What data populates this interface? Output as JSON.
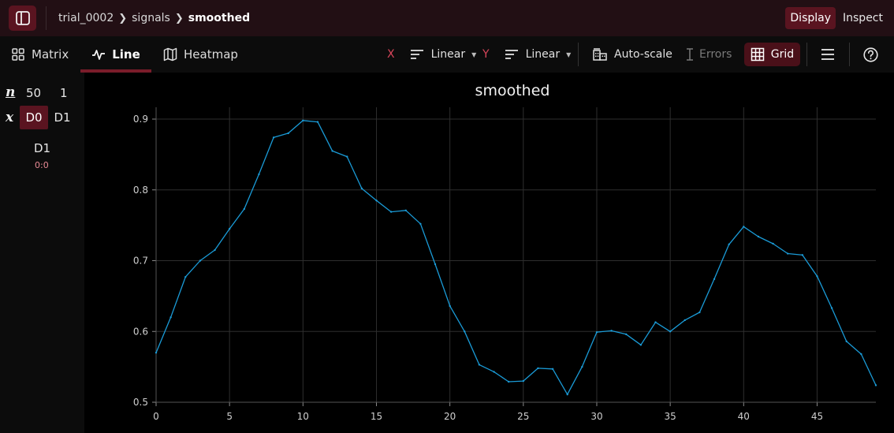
{
  "topbar": {
    "breadcrumb": [
      "trial_0002",
      "signals",
      "smoothed"
    ],
    "modes": [
      "Display",
      "Inspect"
    ],
    "active_mode": "Display"
  },
  "toolbar": {
    "tabs": [
      {
        "label": "Matrix",
        "icon": "grid-icon"
      },
      {
        "label": "Line",
        "icon": "line-chart-icon"
      },
      {
        "label": "Heatmap",
        "icon": "map-icon"
      }
    ],
    "active_tab": "Line",
    "x_axis_letter": "X",
    "x_scale": "Linear",
    "y_axis_letter": "Y",
    "y_scale": "Linear",
    "autoscale_label": "Auto-scale",
    "errors_label": "Errors",
    "grid_label": "Grid"
  },
  "dims": {
    "n_label": "n",
    "x_label": "x",
    "sizes": [
      "50",
      "1"
    ],
    "chips": [
      "D0",
      "D1"
    ],
    "active_chip": "D0",
    "slice_name": "D1",
    "slice_range": "0:0"
  },
  "colors": {
    "accent": "#5a1420",
    "line": "#1a9bd7",
    "axis_letter": "#d8455a"
  },
  "chart_data": {
    "type": "line",
    "title": "smoothed",
    "xlabel": "",
    "ylabel": "",
    "xlim": [
      0,
      49
    ],
    "ylim": [
      0.5,
      0.9
    ],
    "grid": true,
    "x_ticks": [
      "0",
      "5",
      "10",
      "15",
      "20",
      "25",
      "30",
      "35",
      "40",
      "45"
    ],
    "y_ticks": [
      "0.5",
      "0.6",
      "0.7",
      "0.8",
      "0.9"
    ],
    "x": [
      0,
      1,
      2,
      3,
      4,
      5,
      6,
      7,
      8,
      9,
      10,
      11,
      12,
      13,
      14,
      15,
      16,
      17,
      18,
      19,
      20,
      21,
      22,
      23,
      24,
      25,
      26,
      27,
      28,
      29,
      30,
      31,
      32,
      33,
      34,
      35,
      36,
      37,
      38,
      39,
      40,
      41,
      42,
      43,
      44,
      45,
      46,
      47,
      48,
      49
    ],
    "series": [
      {
        "values": [
          0.57,
          0.62,
          0.677,
          0.7,
          0.715,
          0.745,
          0.773,
          0.822,
          0.874,
          0.88,
          0.898,
          0.896,
          0.855,
          0.847,
          0.802,
          0.785,
          0.769,
          0.771,
          0.752,
          0.695,
          0.636,
          0.6,
          0.553,
          0.543,
          0.529,
          0.53,
          0.548,
          0.547,
          0.511,
          0.55,
          0.599,
          0.601,
          0.596,
          0.581,
          0.613,
          0.6,
          0.616,
          0.627,
          0.674,
          0.723,
          0.748,
          0.734,
          0.724,
          0.71,
          0.708,
          0.678,
          0.633,
          0.586,
          0.568,
          0.524
        ]
      }
    ]
  }
}
